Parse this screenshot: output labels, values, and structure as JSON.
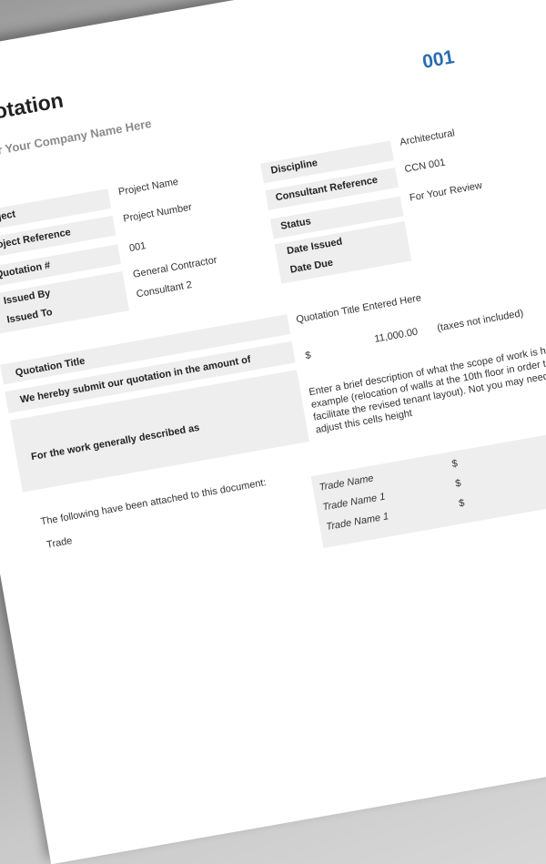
{
  "document": {
    "number": "001",
    "title": "Quotation",
    "company": "Enter Your Company Name Here"
  },
  "left_fields": [
    {
      "label": "Project",
      "value": "Project Name"
    },
    {
      "label": "Project Reference",
      "value": "Project Number"
    },
    {
      "label": "Quotation #",
      "value": "001"
    },
    {
      "label": "Issued By",
      "value": "General Contractor"
    },
    {
      "label": "Issued To",
      "value": "Consultant 2"
    }
  ],
  "right_fields": [
    {
      "label": "Discipline",
      "value": "Architectural"
    },
    {
      "label": "Consultant Reference",
      "value": "CCN 001"
    },
    {
      "label": "Status",
      "value": "For Your Review"
    },
    {
      "label": "Date Issued",
      "value": ""
    },
    {
      "label": "Date Due",
      "value": ""
    }
  ],
  "quotation": {
    "title_label": "Quotation Title",
    "title_value": "Quotation Title Entered Here",
    "amount_label": "We hereby submit our quotation in the amount of",
    "currency": "$",
    "amount": "11,000.00",
    "tax_note": "(taxes not included)",
    "work_label": "For the work generally described as",
    "work_description": "Enter a brief description of what the scope of work is here, example (relocation of walls at the 10th floor in order to facilitate the revised tenant layout). Not you may need to adjust this cells height"
  },
  "attachments": {
    "intro": "The following have been attached to this document:",
    "trade_label": "Trade",
    "trade_header": "Trade Name",
    "trades": [
      {
        "name": "Trade Name 1",
        "currency": "$"
      },
      {
        "name": "Trade Name 1",
        "currency": "$"
      }
    ],
    "header_currency": "$"
  }
}
